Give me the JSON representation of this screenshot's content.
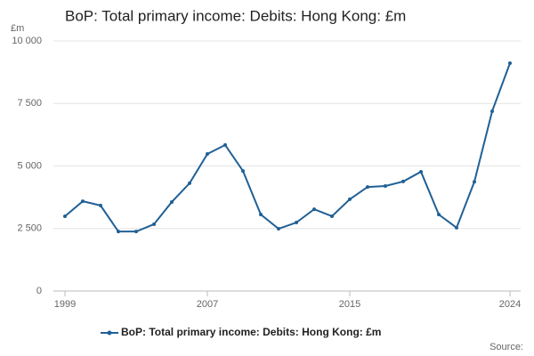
{
  "chart_data": {
    "type": "line",
    "title": "BoP: Total primary income: Debits: Hong Kong: £m",
    "y_label": "£m",
    "source_label": "Source:",
    "x": [
      1999,
      2000,
      2001,
      2002,
      2003,
      2004,
      2005,
      2006,
      2007,
      2008,
      2009,
      2010,
      2011,
      2012,
      2013,
      2014,
      2015,
      2016,
      2017,
      2018,
      2019,
      2020,
      2021,
      2022,
      2023,
      2024
    ],
    "series": [
      {
        "name": "BoP: Total primary income: Debits: Hong Kong: £m",
        "color": "#206095",
        "values": [
          2990,
          3590,
          3420,
          2380,
          2380,
          2670,
          3560,
          4310,
          5480,
          5840,
          4800,
          3060,
          2490,
          2740,
          3270,
          2990,
          3670,
          4160,
          4200,
          4380,
          4770,
          3060,
          2530,
          4370,
          7190,
          9110
        ]
      }
    ],
    "xlim": [
      1999,
      2024
    ],
    "xticks": [
      1999,
      2007,
      2015,
      2024
    ],
    "ylim": [
      0,
      10000
    ],
    "yticks": [
      0,
      {
        "value": 2500,
        "label": "2 500"
      },
      {
        "value": 5000,
        "label": "5 000"
      },
      {
        "value": 7500,
        "label": "7 500"
      },
      {
        "value": 10000,
        "label": "10 000"
      }
    ],
    "grid": true
  }
}
